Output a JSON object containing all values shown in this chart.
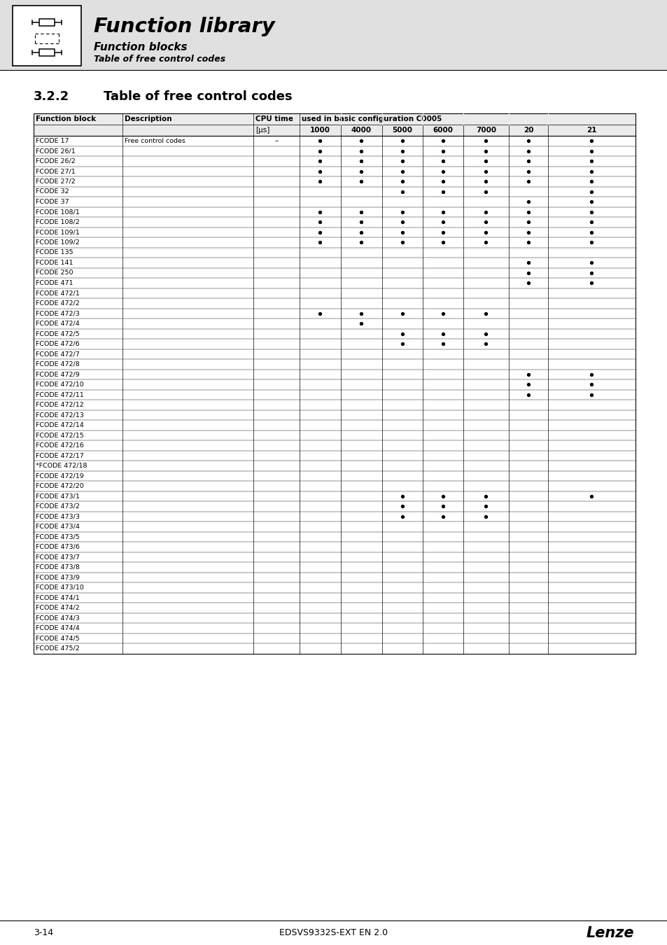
{
  "title_main": "Function library",
  "subtitle1": "Function blocks",
  "subtitle2": "Table of free control codes",
  "section_number": "3.2.2",
  "section_title": "Table of free control codes",
  "footer_left": "3-14",
  "footer_center": "EDSVS9332S-EXT EN 2.0",
  "footer_right": "Lenze",
  "rows": [
    {
      "name": "FCODE 17",
      "desc": "Free control codes",
      "cpu": "–",
      "c1000": 1,
      "c4000": 1,
      "c5000": 1,
      "c6000": 1,
      "c7000": 1,
      "c20": 1,
      "c21": 1
    },
    {
      "name": "FCODE 26/1",
      "desc": "",
      "cpu": "",
      "c1000": 1,
      "c4000": 1,
      "c5000": 1,
      "c6000": 1,
      "c7000": 1,
      "c20": 1,
      "c21": 1
    },
    {
      "name": "FCODE 26/2",
      "desc": "",
      "cpu": "",
      "c1000": 1,
      "c4000": 1,
      "c5000": 1,
      "c6000": 1,
      "c7000": 1,
      "c20": 1,
      "c21": 1
    },
    {
      "name": "FCODE 27/1",
      "desc": "",
      "cpu": "",
      "c1000": 1,
      "c4000": 1,
      "c5000": 1,
      "c6000": 1,
      "c7000": 1,
      "c20": 1,
      "c21": 1
    },
    {
      "name": "FCODE 27/2",
      "desc": "",
      "cpu": "",
      "c1000": 1,
      "c4000": 1,
      "c5000": 1,
      "c6000": 1,
      "c7000": 1,
      "c20": 1,
      "c21": 1
    },
    {
      "name": "FCODE 32",
      "desc": "",
      "cpu": "",
      "c1000": 0,
      "c4000": 0,
      "c5000": 1,
      "c6000": 1,
      "c7000": 1,
      "c20": 0,
      "c21": 1
    },
    {
      "name": "FCODE 37",
      "desc": "",
      "cpu": "",
      "c1000": 0,
      "c4000": 0,
      "c5000": 0,
      "c6000": 0,
      "c7000": 0,
      "c20": 1,
      "c21": 1
    },
    {
      "name": "FCODE 108/1",
      "desc": "",
      "cpu": "",
      "c1000": 1,
      "c4000": 1,
      "c5000": 1,
      "c6000": 1,
      "c7000": 1,
      "c20": 1,
      "c21": 1
    },
    {
      "name": "FCODE 108/2",
      "desc": "",
      "cpu": "",
      "c1000": 1,
      "c4000": 1,
      "c5000": 1,
      "c6000": 1,
      "c7000": 1,
      "c20": 1,
      "c21": 1
    },
    {
      "name": "FCODE 109/1",
      "desc": "",
      "cpu": "",
      "c1000": 1,
      "c4000": 1,
      "c5000": 1,
      "c6000": 1,
      "c7000": 1,
      "c20": 1,
      "c21": 1
    },
    {
      "name": "FCODE 109/2",
      "desc": "",
      "cpu": "",
      "c1000": 1,
      "c4000": 1,
      "c5000": 1,
      "c6000": 1,
      "c7000": 1,
      "c20": 1,
      "c21": 1
    },
    {
      "name": "FCODE 135",
      "desc": "",
      "cpu": "",
      "c1000": 0,
      "c4000": 0,
      "c5000": 0,
      "c6000": 0,
      "c7000": 0,
      "c20": 0,
      "c21": 0
    },
    {
      "name": "FCODE 141",
      "desc": "",
      "cpu": "",
      "c1000": 0,
      "c4000": 0,
      "c5000": 0,
      "c6000": 0,
      "c7000": 0,
      "c20": 1,
      "c21": 1
    },
    {
      "name": "FCODE 250",
      "desc": "",
      "cpu": "",
      "c1000": 0,
      "c4000": 0,
      "c5000": 0,
      "c6000": 0,
      "c7000": 0,
      "c20": 1,
      "c21": 1
    },
    {
      "name": "FCODE 471",
      "desc": "",
      "cpu": "",
      "c1000": 0,
      "c4000": 0,
      "c5000": 0,
      "c6000": 0,
      "c7000": 0,
      "c20": 1,
      "c21": 1
    },
    {
      "name": "FCODE 472/1",
      "desc": "",
      "cpu": "",
      "c1000": 0,
      "c4000": 0,
      "c5000": 0,
      "c6000": 0,
      "c7000": 0,
      "c20": 0,
      "c21": 0
    },
    {
      "name": "FCODE 472/2",
      "desc": "",
      "cpu": "",
      "c1000": 0,
      "c4000": 0,
      "c5000": 0,
      "c6000": 0,
      "c7000": 0,
      "c20": 0,
      "c21": 0
    },
    {
      "name": "FCODE 472/3",
      "desc": "",
      "cpu": "",
      "c1000": 1,
      "c4000": 1,
      "c5000": 1,
      "c6000": 1,
      "c7000": 1,
      "c20": 0,
      "c21": 0
    },
    {
      "name": "FCODE 472/4",
      "desc": "",
      "cpu": "",
      "c1000": 0,
      "c4000": 1,
      "c5000": 0,
      "c6000": 0,
      "c7000": 0,
      "c20": 0,
      "c21": 0
    },
    {
      "name": "FCODE 472/5",
      "desc": "",
      "cpu": "",
      "c1000": 0,
      "c4000": 0,
      "c5000": 1,
      "c6000": 1,
      "c7000": 1,
      "c20": 0,
      "c21": 0
    },
    {
      "name": "FCODE 472/6",
      "desc": "",
      "cpu": "",
      "c1000": 0,
      "c4000": 0,
      "c5000": 1,
      "c6000": 1,
      "c7000": 1,
      "c20": 0,
      "c21": 0
    },
    {
      "name": "FCODE 472/7",
      "desc": "",
      "cpu": "",
      "c1000": 0,
      "c4000": 0,
      "c5000": 0,
      "c6000": 0,
      "c7000": 0,
      "c20": 0,
      "c21": 0
    },
    {
      "name": "FCODE 472/8",
      "desc": "",
      "cpu": "",
      "c1000": 0,
      "c4000": 0,
      "c5000": 0,
      "c6000": 0,
      "c7000": 0,
      "c20": 0,
      "c21": 0
    },
    {
      "name": "FCODE 472/9",
      "desc": "",
      "cpu": "",
      "c1000": 0,
      "c4000": 0,
      "c5000": 0,
      "c6000": 0,
      "c7000": 0,
      "c20": 1,
      "c21": 1
    },
    {
      "name": "FCODE 472/10",
      "desc": "",
      "cpu": "",
      "c1000": 0,
      "c4000": 0,
      "c5000": 0,
      "c6000": 0,
      "c7000": 0,
      "c20": 1,
      "c21": 1
    },
    {
      "name": "FCODE 472/11",
      "desc": "",
      "cpu": "",
      "c1000": 0,
      "c4000": 0,
      "c5000": 0,
      "c6000": 0,
      "c7000": 0,
      "c20": 1,
      "c21": 1
    },
    {
      "name": "FCODE 472/12",
      "desc": "",
      "cpu": "",
      "c1000": 0,
      "c4000": 0,
      "c5000": 0,
      "c6000": 0,
      "c7000": 0,
      "c20": 0,
      "c21": 0
    },
    {
      "name": "FCODE 472/13",
      "desc": "",
      "cpu": "",
      "c1000": 0,
      "c4000": 0,
      "c5000": 0,
      "c6000": 0,
      "c7000": 0,
      "c20": 0,
      "c21": 0
    },
    {
      "name": "FCODE 472/14",
      "desc": "",
      "cpu": "",
      "c1000": 0,
      "c4000": 0,
      "c5000": 0,
      "c6000": 0,
      "c7000": 0,
      "c20": 0,
      "c21": 0
    },
    {
      "name": "FCODE 472/15",
      "desc": "",
      "cpu": "",
      "c1000": 0,
      "c4000": 0,
      "c5000": 0,
      "c6000": 0,
      "c7000": 0,
      "c20": 0,
      "c21": 0
    },
    {
      "name": "FCODE 472/16",
      "desc": "",
      "cpu": "",
      "c1000": 0,
      "c4000": 0,
      "c5000": 0,
      "c6000": 0,
      "c7000": 0,
      "c20": 0,
      "c21": 0
    },
    {
      "name": "FCODE 472/17",
      "desc": "",
      "cpu": "",
      "c1000": 0,
      "c4000": 0,
      "c5000": 0,
      "c6000": 0,
      "c7000": 0,
      "c20": 0,
      "c21": 0
    },
    {
      "name": "*FCODE 472/18",
      "desc": "",
      "cpu": "",
      "c1000": 0,
      "c4000": 0,
      "c5000": 0,
      "c6000": 0,
      "c7000": 0,
      "c20": 0,
      "c21": 0
    },
    {
      "name": "FCODE 472/19",
      "desc": "",
      "cpu": "",
      "c1000": 0,
      "c4000": 0,
      "c5000": 0,
      "c6000": 0,
      "c7000": 0,
      "c20": 0,
      "c21": 0
    },
    {
      "name": "FCODE 472/20",
      "desc": "",
      "cpu": "",
      "c1000": 0,
      "c4000": 0,
      "c5000": 0,
      "c6000": 0,
      "c7000": 0,
      "c20": 0,
      "c21": 0
    },
    {
      "name": "FCODE 473/1",
      "desc": "",
      "cpu": "",
      "c1000": 0,
      "c4000": 0,
      "c5000": 1,
      "c6000": 1,
      "c7000": 1,
      "c20": 0,
      "c21": 1
    },
    {
      "name": "FCODE 473/2",
      "desc": "",
      "cpu": "",
      "c1000": 0,
      "c4000": 0,
      "c5000": 1,
      "c6000": 1,
      "c7000": 1,
      "c20": 0,
      "c21": 0
    },
    {
      "name": "FCODE 473/3",
      "desc": "",
      "cpu": "",
      "c1000": 0,
      "c4000": 0,
      "c5000": 1,
      "c6000": 1,
      "c7000": 1,
      "c20": 0,
      "c21": 0
    },
    {
      "name": "FCODE 473/4",
      "desc": "",
      "cpu": "",
      "c1000": 0,
      "c4000": 0,
      "c5000": 0,
      "c6000": 0,
      "c7000": 0,
      "c20": 0,
      "c21": 0
    },
    {
      "name": "FCODE 473/5",
      "desc": "",
      "cpu": "",
      "c1000": 0,
      "c4000": 0,
      "c5000": 0,
      "c6000": 0,
      "c7000": 0,
      "c20": 0,
      "c21": 0
    },
    {
      "name": "FCODE 473/6",
      "desc": "",
      "cpu": "",
      "c1000": 0,
      "c4000": 0,
      "c5000": 0,
      "c6000": 0,
      "c7000": 0,
      "c20": 0,
      "c21": 0
    },
    {
      "name": "FCODE 473/7",
      "desc": "",
      "cpu": "",
      "c1000": 0,
      "c4000": 0,
      "c5000": 0,
      "c6000": 0,
      "c7000": 0,
      "c20": 0,
      "c21": 0
    },
    {
      "name": "FCODE 473/8",
      "desc": "",
      "cpu": "",
      "c1000": 0,
      "c4000": 0,
      "c5000": 0,
      "c6000": 0,
      "c7000": 0,
      "c20": 0,
      "c21": 0
    },
    {
      "name": "FCODE 473/9",
      "desc": "",
      "cpu": "",
      "c1000": 0,
      "c4000": 0,
      "c5000": 0,
      "c6000": 0,
      "c7000": 0,
      "c20": 0,
      "c21": 0
    },
    {
      "name": "FCODE 473/10",
      "desc": "",
      "cpu": "",
      "c1000": 0,
      "c4000": 0,
      "c5000": 0,
      "c6000": 0,
      "c7000": 0,
      "c20": 0,
      "c21": 0
    },
    {
      "name": "FCODE 474/1",
      "desc": "",
      "cpu": "",
      "c1000": 0,
      "c4000": 0,
      "c5000": 0,
      "c6000": 0,
      "c7000": 0,
      "c20": 0,
      "c21": 0
    },
    {
      "name": "FCODE 474/2",
      "desc": "",
      "cpu": "",
      "c1000": 0,
      "c4000": 0,
      "c5000": 0,
      "c6000": 0,
      "c7000": 0,
      "c20": 0,
      "c21": 0
    },
    {
      "name": "FCODE 474/3",
      "desc": "",
      "cpu": "",
      "c1000": 0,
      "c4000": 0,
      "c5000": 0,
      "c6000": 0,
      "c7000": 0,
      "c20": 0,
      "c21": 0
    },
    {
      "name": "FCODE 474/4",
      "desc": "",
      "cpu": "",
      "c1000": 0,
      "c4000": 0,
      "c5000": 0,
      "c6000": 0,
      "c7000": 0,
      "c20": 0,
      "c21": 0
    },
    {
      "name": "FCODE 474/5",
      "desc": "",
      "cpu": "",
      "c1000": 0,
      "c4000": 0,
      "c5000": 0,
      "c6000": 0,
      "c7000": 0,
      "c20": 0,
      "c21": 0
    },
    {
      "name": "FCODE 475/2",
      "desc": "",
      "cpu": "",
      "c1000": 0,
      "c4000": 0,
      "c5000": 0,
      "c6000": 0,
      "c7000": 0,
      "c20": 0,
      "c21": 0
    }
  ]
}
